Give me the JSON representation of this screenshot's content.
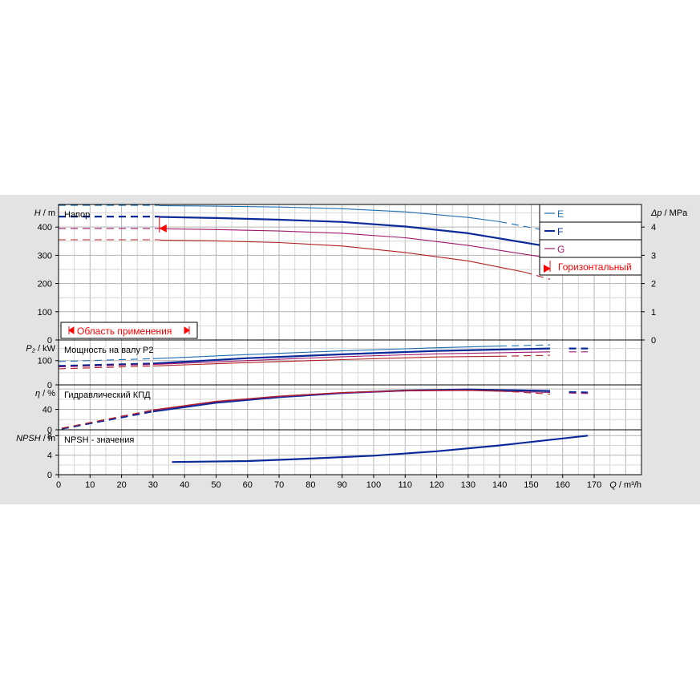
{
  "chart_data": {
    "type": "line",
    "colors": {
      "E": "#1f6fb0",
      "F": "#0a2a9a",
      "G": "#a0196e",
      "H": "#b22222",
      "accent": "#ff0000",
      "grid": "#b4b4b4"
    },
    "x_axis": {
      "label": "Q",
      "unit": "m³/h",
      "range": [
        0,
        185
      ],
      "ticks": [
        0,
        10,
        20,
        30,
        40,
        50,
        60,
        70,
        80,
        90,
        100,
        110,
        120,
        130,
        140,
        150,
        160,
        170
      ],
      "tick_labels": [
        "0",
        "10",
        "20",
        "30",
        "40",
        "50",
        "60",
        "70",
        "80",
        "90",
        "100",
        "110",
        "120",
        "130",
        "140",
        "150",
        "160",
        "170"
      ]
    },
    "legend": {
      "placement": "top-right",
      "entries": [
        {
          "key": "E",
          "label": "E"
        },
        {
          "key": "F",
          "label": "F"
        },
        {
          "key": "G",
          "label": "G"
        },
        {
          "key": "H",
          "label": "Горизонтальный"
        }
      ]
    },
    "panels": [
      {
        "id": "head",
        "title": "Напор",
        "ylabel": "H",
        "yunit": "m",
        "ylim": [
          0,
          480
        ],
        "ticks": [
          0,
          100,
          200,
          300,
          400
        ],
        "tick_labels": [
          "0",
          "100",
          "200",
          "300",
          "400"
        ],
        "right_axis": {
          "label": "Δp",
          "unit": "MPa",
          "range": [
            0,
            4.8
          ],
          "ticks": [
            0,
            1,
            2,
            3,
            4
          ],
          "tick_labels": [
            "0",
            "1",
            "2",
            "3",
            "4"
          ]
        },
        "annotation": "Область применения",
        "series": [
          {
            "key": "E",
            "width": 1.1,
            "dashed": [
              [
                0,
                477
              ],
              [
                32,
                477
              ]
            ],
            "solid": [
              [
                32,
                476
              ],
              [
                50,
                474
              ],
              [
                70,
                471
              ],
              [
                90,
                465
              ],
              [
                110,
                454
              ],
              [
                130,
                434
              ],
              [
                140,
                419
              ]
            ],
            "dashed_end": [
              [
                140,
                419
              ],
              [
                156,
                385
              ]
            ]
          },
          {
            "key": "F",
            "width": 2.2,
            "dashed": [
              [
                0,
                437
              ],
              [
                32,
                437
              ]
            ],
            "solid": [
              [
                32,
                436
              ],
              [
                50,
                432
              ],
              [
                70,
                426
              ],
              [
                90,
                418
              ],
              [
                110,
                402
              ],
              [
                130,
                378
              ],
              [
                156,
                330
              ]
            ],
            "dashed_end": []
          },
          {
            "key": "G",
            "width": 1.1,
            "dashed": [
              [
                0,
                395
              ],
              [
                32,
                395
              ]
            ],
            "solid": [
              [
                32,
                394
              ],
              [
                50,
                391
              ],
              [
                70,
                386
              ],
              [
                90,
                378
              ],
              [
                110,
                362
              ],
              [
                130,
                335
              ],
              [
                156,
                290
              ]
            ],
            "dashed_end": [
              [
                156,
                290
              ],
              [
                168,
                239
              ]
            ]
          },
          {
            "key": "H",
            "width": 1.1,
            "dashed": [
              [
                0,
                355
              ],
              [
                32,
                355
              ]
            ],
            "solid": [
              [
                32,
                354
              ],
              [
                50,
                351
              ],
              [
                70,
                345
              ],
              [
                90,
                333
              ],
              [
                110,
                310
              ],
              [
                130,
                280
              ],
              [
                148,
                240
              ]
            ],
            "dashed_end": [
              [
                148,
                240
              ],
              [
                156,
                215
              ]
            ]
          }
        ]
      },
      {
        "id": "power",
        "title": "Мощность на валу P2",
        "ylabel": "P₂",
        "yunit": "kW",
        "ylim": [
          0,
          185
        ],
        "ticks": [
          0,
          100
        ],
        "tick_labels": [
          "0",
          "100"
        ],
        "series": [
          {
            "key": "E",
            "width": 1.1,
            "dashed": [
              [
                0,
                96
              ],
              [
                30,
                108
              ]
            ],
            "solid": [
              [
                30,
                108
              ],
              [
                60,
                125
              ],
              [
                90,
                140
              ],
              [
                120,
                153
              ],
              [
                140,
                160
              ]
            ],
            "dashed_end": [
              [
                140,
                160
              ],
              [
                156,
                165
              ]
            ]
          },
          {
            "key": "F",
            "width": 2.2,
            "dashed": [
              [
                0,
                78
              ],
              [
                30,
                88
              ]
            ],
            "solid": [
              [
                30,
                88
              ],
              [
                60,
                110
              ],
              [
                90,
                126
              ],
              [
                120,
                140
              ],
              [
                156,
                150
              ]
            ],
            "dashed_end": [
              [
                162,
                150
              ],
              [
                168,
                150
              ]
            ]
          },
          {
            "key": "G",
            "width": 1.1,
            "dashed": [
              [
                0,
                74
              ],
              [
                30,
                84
              ]
            ],
            "solid": [
              [
                30,
                84
              ],
              [
                60,
                100
              ],
              [
                90,
                116
              ],
              [
                120,
                128
              ],
              [
                156,
                136
              ]
            ],
            "dashed_end": [
              [
                162,
                136
              ],
              [
                168,
                136
              ]
            ]
          },
          {
            "key": "H",
            "width": 1.1,
            "dashed": [
              [
                0,
                66
              ],
              [
                30,
                78
              ]
            ],
            "solid": [
              [
                30,
                78
              ],
              [
                60,
                92
              ],
              [
                90,
                104
              ],
              [
                120,
                115
              ],
              [
                140,
                118
              ]
            ],
            "dashed_end": [
              [
                140,
                118
              ],
              [
                156,
                122
              ]
            ]
          }
        ]
      },
      {
        "id": "efficiency",
        "title": "Гидравлический КПД",
        "ylabel": "η",
        "yunit": "%",
        "ylim": [
          0,
          88
        ],
        "ticks": [
          0,
          40
        ],
        "tick_labels": [
          "0",
          "40"
        ],
        "series": [
          {
            "key": "E",
            "width": 1.1,
            "dashed": [
              [
                1,
                2
              ],
              [
                30,
                38
              ]
            ],
            "solid": [
              [
                30,
                38
              ],
              [
                50,
                55
              ],
              [
                70,
                66
              ],
              [
                90,
                73
              ],
              [
                110,
                77
              ],
              [
                130,
                78
              ],
              [
                150,
                76
              ]
            ],
            "dashed_end": [
              [
                150,
                76
              ],
              [
                156,
                75
              ]
            ]
          },
          {
            "key": "F",
            "width": 2.2,
            "dashed": [
              [
                1,
                2
              ],
              [
                30,
                36
              ]
            ],
            "solid": [
              [
                30,
                36
              ],
              [
                50,
                53
              ],
              [
                70,
                64
              ],
              [
                90,
                72
              ],
              [
                110,
                77
              ],
              [
                130,
                79
              ],
              [
                156,
                76
              ]
            ],
            "dashed_end": [
              [
                162,
                74
              ],
              [
                168,
                73
              ]
            ]
          },
          {
            "key": "G",
            "width": 1.1,
            "dashed": [
              [
                1,
                3
              ],
              [
                30,
                38
              ]
            ],
            "solid": [
              [
                30,
                38
              ],
              [
                50,
                55
              ],
              [
                70,
                65
              ],
              [
                90,
                72
              ],
              [
                110,
                76
              ],
              [
                130,
                77
              ],
              [
                156,
                73
              ]
            ],
            "dashed_end": [
              [
                162,
                72
              ],
              [
                168,
                71
              ]
            ]
          },
          {
            "key": "H",
            "width": 1.1,
            "dashed": [
              [
                1,
                3
              ],
              [
                30,
                39
              ]
            ],
            "solid": [
              [
                30,
                39
              ],
              [
                50,
                56
              ],
              [
                70,
                66
              ],
              [
                90,
                73
              ],
              [
                110,
                77
              ],
              [
                128,
                78
              ],
              [
                140,
                76
              ]
            ],
            "dashed_end": [
              [
                140,
                76
              ],
              [
                156,
                70
              ]
            ]
          }
        ]
      },
      {
        "id": "npsh",
        "title": "NPSH - значения",
        "ylabel": "NPSH",
        "yunit": "m",
        "ylim": [
          0,
          9.2
        ],
        "ticks": [
          0,
          4,
          8
        ],
        "tick_labels": [
          "0",
          "4",
          "8"
        ],
        "series": [
          {
            "key": "F",
            "width": 2.2,
            "dashed": [],
            "solid": [
              [
                36,
                2.6
              ],
              [
                60,
                2.8
              ],
              [
                80,
                3.3
              ],
              [
                100,
                3.9
              ],
              [
                120,
                4.8
              ],
              [
                140,
                6.0
              ],
              [
                168,
                8.0
              ]
            ],
            "dashed_end": []
          }
        ]
      }
    ]
  }
}
